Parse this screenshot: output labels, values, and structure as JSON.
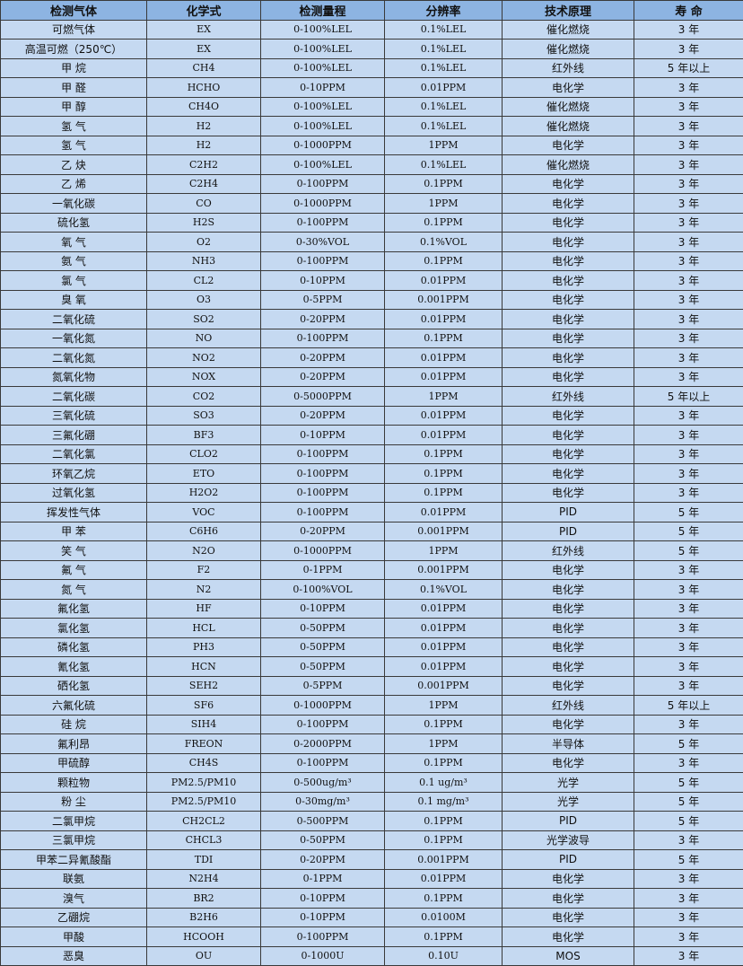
{
  "header": [
    "检测气体",
    "化学式",
    "检测量程",
    "分辨率",
    "技术原理",
    "寿 命"
  ],
  "rows": [
    [
      "可燃气体",
      "EX",
      "0-100%LEL",
      "0.1%LEL",
      "催化燃烧",
      "3 年"
    ],
    [
      "高温可燃（250℃）",
      "EX",
      "0-100%LEL",
      "0.1%LEL",
      "催化燃烧",
      "3 年"
    ],
    [
      "甲 烷",
      "CH4",
      "0-100%LEL",
      "0.1%LEL",
      "红外线",
      "5 年以上"
    ],
    [
      "甲 醛",
      "HCHO",
      "0-10PPM",
      "0.01PPM",
      "电化学",
      "3 年"
    ],
    [
      "甲 醇",
      "CH4O",
      "0-100%LEL",
      "0.1%LEL",
      "催化燃烧",
      "3 年"
    ],
    [
      "氢 气",
      "H2",
      "0-100%LEL",
      "0.1%LEL",
      "催化燃烧",
      "3 年"
    ],
    [
      "氢 气",
      "H2",
      "0-1000PPM",
      "1PPM",
      "电化学",
      "3 年"
    ],
    [
      "乙 炔",
      "C2H2",
      "0-100%LEL",
      "0.1%LEL",
      "催化燃烧",
      "3 年"
    ],
    [
      "乙 烯",
      "C2H4",
      "0-100PPM",
      "0.1PPM",
      "电化学",
      "3 年"
    ],
    [
      "一氧化碳",
      "CO",
      "0-1000PPM",
      "1PPM",
      "电化学",
      "3 年"
    ],
    [
      "硫化氢",
      "H2S",
      "0-100PPM",
      "0.1PPM",
      "电化学",
      "3 年"
    ],
    [
      "氧 气",
      "O2",
      "0-30%VOL",
      "0.1%VOL",
      "电化学",
      "3 年"
    ],
    [
      "氨 气",
      "NH3",
      "0-100PPM",
      "0.1PPM",
      "电化学",
      "3 年"
    ],
    [
      "氯 气",
      "CL2",
      "0-10PPM",
      "0.01PPM",
      "电化学",
      "3 年"
    ],
    [
      "臭 氧",
      "O3",
      "0-5PPM",
      "0.001PPM",
      "电化学",
      "3 年"
    ],
    [
      "二氧化硫",
      "SO2",
      "0-20PPM",
      "0.01PPM",
      "电化学",
      "3 年"
    ],
    [
      "一氧化氮",
      "NO",
      "0-100PPM",
      "0.1PPM",
      "电化学",
      "3 年"
    ],
    [
      "二氧化氮",
      "NO2",
      "0-20PPM",
      "0.01PPM",
      "电化学",
      "3 年"
    ],
    [
      "氮氧化物",
      "NOX",
      "0-20PPM",
      "0.01PPM",
      "电化学",
      "3 年"
    ],
    [
      "二氧化碳",
      "CO2",
      "0-5000PPM",
      "1PPM",
      "红外线",
      "5 年以上"
    ],
    [
      "三氧化硫",
      "SO3",
      "0-20PPM",
      "0.01PPM",
      "电化学",
      "3 年"
    ],
    [
      "三氟化硼",
      "BF3",
      "0-10PPM",
      "0.01PPM",
      "电化学",
      "3 年"
    ],
    [
      "二氧化氯",
      "CLO2",
      "0-100PPM",
      "0.1PPM",
      "电化学",
      "3 年"
    ],
    [
      "环氧乙烷",
      "ETO",
      "0-100PPM",
      "0.1PPM",
      "电化学",
      "3 年"
    ],
    [
      "过氧化氢",
      "H2O2",
      "0-100PPM",
      "0.1PPM",
      "电化学",
      "3 年"
    ],
    [
      "挥发性气体",
      "VOC",
      "0-100PPM",
      "0.01PPM",
      "PID",
      "5 年"
    ],
    [
      "甲 苯",
      "C6H6",
      "0-20PPM",
      "0.001PPM",
      "PID",
      "5 年"
    ],
    [
      "笑 气",
      "N2O",
      "0-1000PPM",
      "1PPM",
      "红外线",
      "5 年"
    ],
    [
      "氟 气",
      "F2",
      "0-1PPM",
      "0.001PPM",
      "电化学",
      "3 年"
    ],
    [
      "氮 气",
      "N2",
      "0-100%VOL",
      "0.1%VOL",
      "电化学",
      "3 年"
    ],
    [
      "氟化氢",
      "HF",
      "0-10PPM",
      "0.01PPM",
      "电化学",
      "3 年"
    ],
    [
      "氯化氢",
      "HCL",
      "0-50PPM",
      "0.01PPM",
      "电化学",
      "3 年"
    ],
    [
      "磷化氢",
      "PH3",
      "0-50PPM",
      "0.01PPM",
      "电化学",
      "3 年"
    ],
    [
      "氰化氢",
      "HCN",
      "0-50PPM",
      "0.01PPM",
      "电化学",
      "3 年"
    ],
    [
      "硒化氢",
      "SEH2",
      "0-5PPM",
      "0.001PPM",
      "电化学",
      "3 年"
    ],
    [
      "六氟化硫",
      "SF6",
      "0-1000PPM",
      "1PPM",
      "红外线",
      "5 年以上"
    ],
    [
      "硅 烷",
      "SIH4",
      "0-100PPM",
      "0.1PPM",
      "电化学",
      "3 年"
    ],
    [
      "氟利昂",
      "FREON",
      "0-2000PPM",
      "1PPM",
      "半导体",
      "5 年"
    ],
    [
      "甲硫醇",
      "CH4S",
      "0-100PPM",
      "0.1PPM",
      "电化学",
      "3 年"
    ],
    [
      "颗粒物",
      "PM2.5/PM10",
      "0-500ug/m³",
      "0.1 ug/m³",
      "光学",
      "5 年"
    ],
    [
      "粉 尘",
      "PM2.5/PM10",
      "0-30mg/m³",
      "0.1 mg/m³",
      "光学",
      "5 年"
    ],
    [
      "二氯甲烷",
      "CH2CL2",
      "0-500PPM",
      "0.1PPM",
      "PID",
      "5 年"
    ],
    [
      "三氯甲烷",
      "CHCL3",
      "0-50PPM",
      "0.1PPM",
      "光学波导",
      "3 年"
    ],
    [
      "甲苯二异氰酸酯",
      "TDI",
      "0-20PPM",
      "0.001PPM",
      "PID",
      "5 年"
    ],
    [
      "联氨",
      "N2H4",
      "0-1PPM",
      "0.01PPM",
      "电化学",
      "3 年"
    ],
    [
      "溴气",
      "BR2",
      "0-10PPM",
      "0.1PPM",
      "电化学",
      "3 年"
    ],
    [
      "乙硼烷",
      "B2H6",
      "0-10PPM",
      "0.0100M",
      "电化学",
      "3 年"
    ],
    [
      "甲酸",
      "HCOOH",
      "0-100PPM",
      "0.1PPM",
      "电化学",
      "3 年"
    ],
    [
      "恶臭",
      "OU",
      "0-1000U",
      "0.10U",
      "MOS",
      "3 年"
    ]
  ]
}
